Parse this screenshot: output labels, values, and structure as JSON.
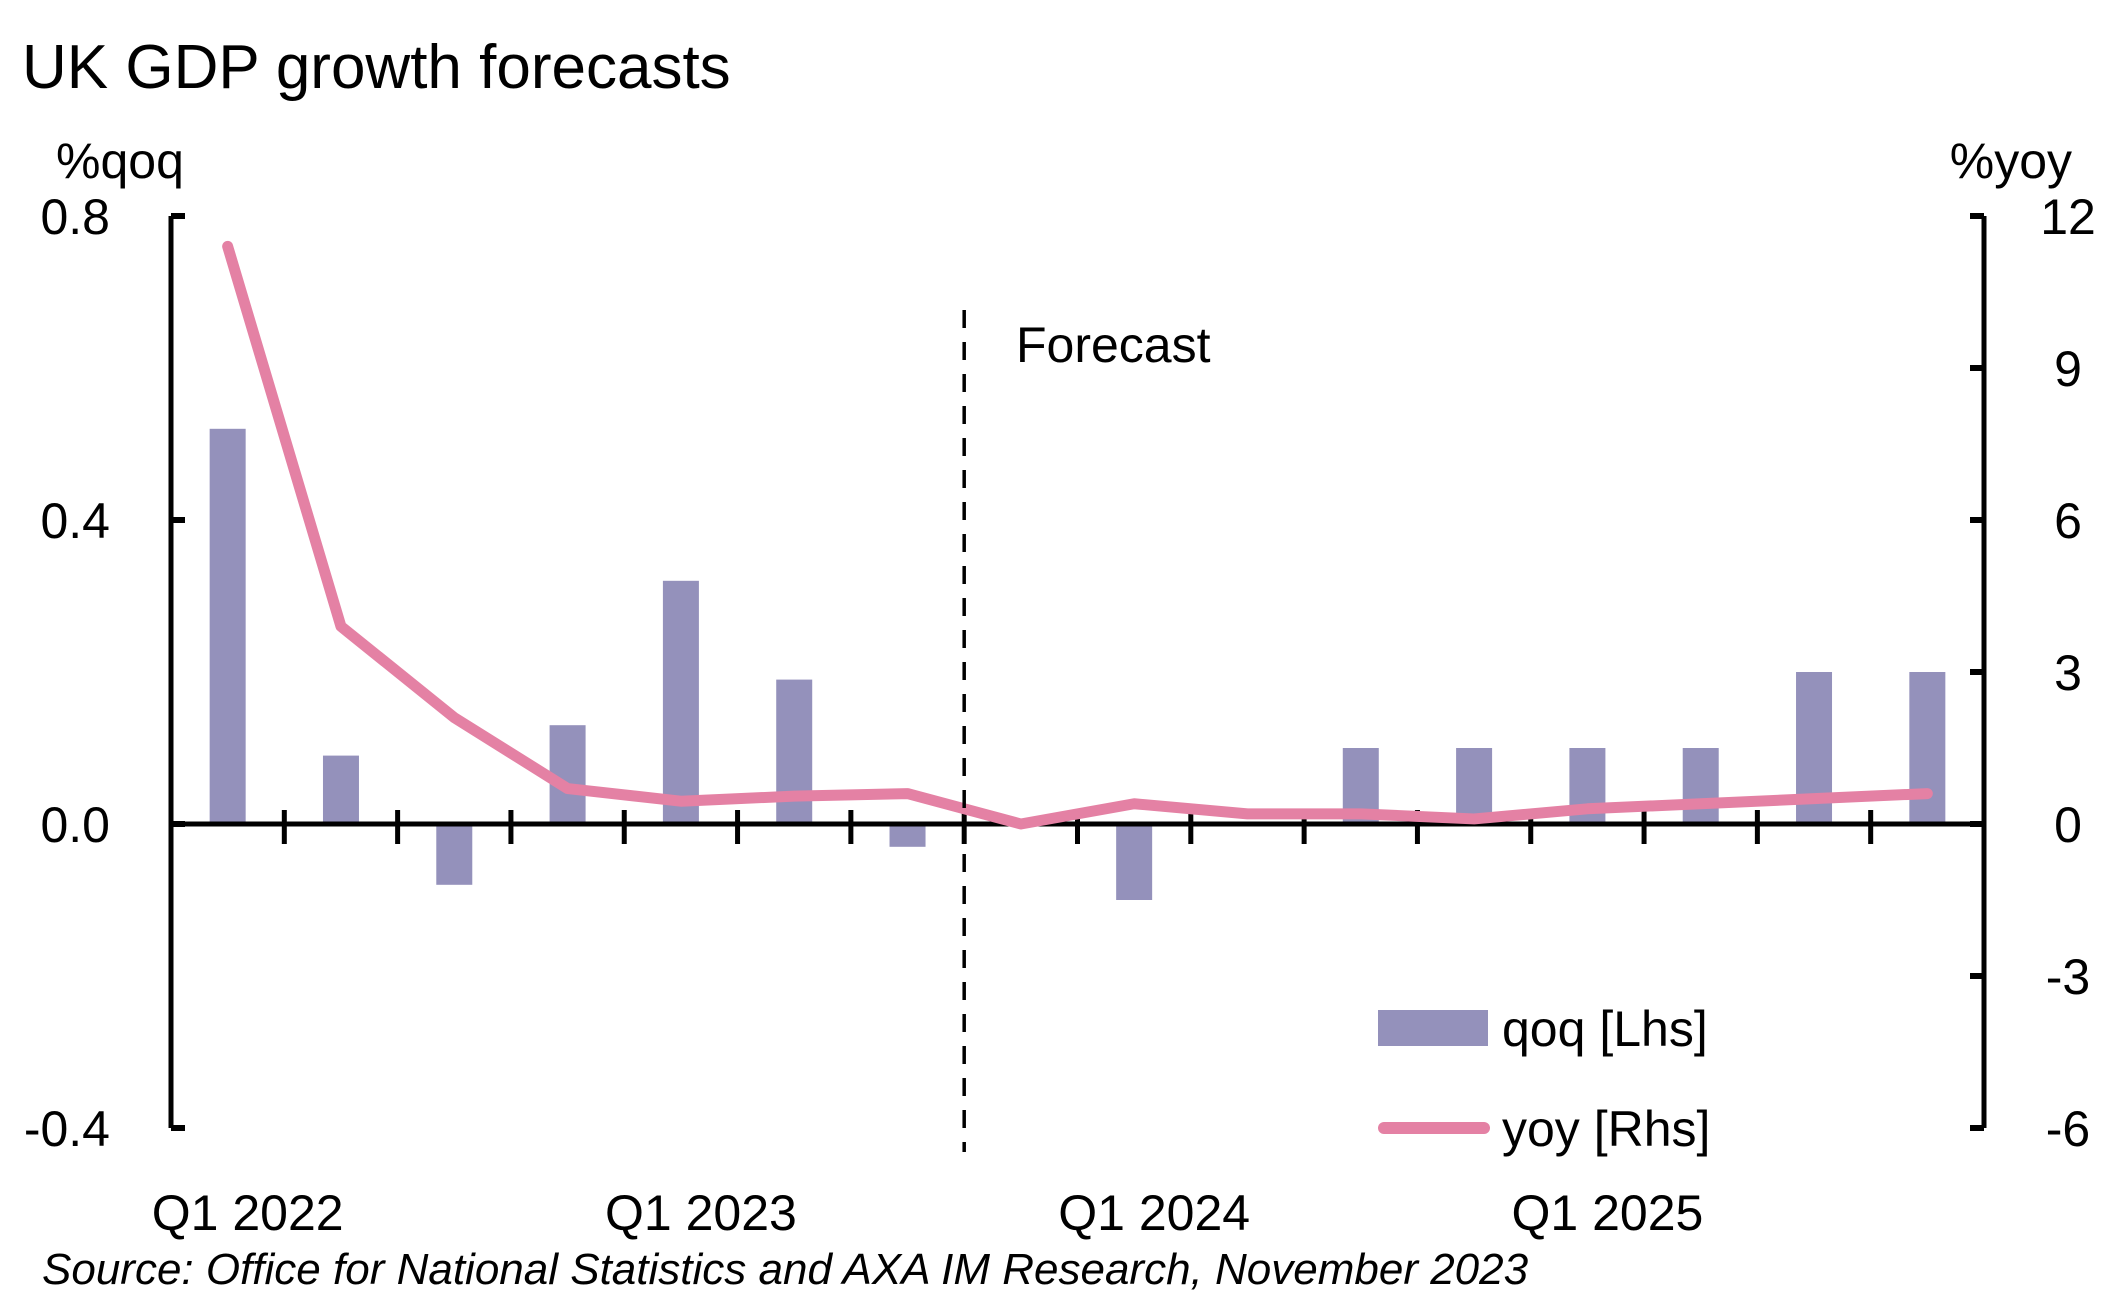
{
  "chart_data": {
    "type": "bar+line",
    "title": "UK GDP growth forecasts",
    "categories": [
      "Q1 2022",
      "Q2 2022",
      "Q3 2022",
      "Q4 2022",
      "Q1 2023",
      "Q2 2023",
      "Q3 2023",
      "Q4 2023",
      "Q1 2024",
      "Q2 2024",
      "Q3 2024",
      "Q4 2024",
      "Q1 2025",
      "Q2 2025",
      "Q3 2025",
      "Q4 2025"
    ],
    "x_tick_labels": [
      "Q1 2022",
      "Q1 2023",
      "Q1 2024",
      "Q1 2025"
    ],
    "left_axis": {
      "label": "%qoq",
      "ylim": [
        -0.4,
        0.8
      ],
      "ticks": [
        "0.8",
        "0.4",
        "0.0",
        "-0.4"
      ],
      "tick_values": [
        0.8,
        0.4,
        0.0,
        -0.4
      ]
    },
    "right_axis": {
      "label": "%yoy",
      "ylim": [
        -6,
        12
      ],
      "ticks": [
        "12",
        "9",
        "6",
        "3",
        "0",
        "-3",
        "-6"
      ],
      "tick_values": [
        12,
        9,
        6,
        3,
        0,
        -3,
        -6
      ]
    },
    "series": [
      {
        "name": "qoq [Lhs]",
        "type": "bar",
        "axis": "left",
        "color": "#9491bb",
        "values": [
          0.5,
          0.1,
          -0.1,
          0.1,
          0.3,
          0.2,
          0.0,
          0.0,
          -0.1,
          0.0,
          0.1,
          0.1,
          0.1,
          0.1,
          0.2,
          0.2
        ],
        "display_values": [
          0.52,
          0.09,
          -0.08,
          0.13,
          0.32,
          0.19,
          -0.03,
          0.0,
          -0.1,
          0.0,
          0.1,
          0.1,
          0.1,
          0.1,
          0.2,
          0.2
        ]
      },
      {
        "name": "yoy [Rhs]",
        "type": "line",
        "axis": "right",
        "color": "#e481a4",
        "values": [
          11.4,
          3.9,
          2.1,
          0.7,
          0.45,
          0.55,
          0.6,
          0.0,
          0.4,
          0.2,
          0.2,
          0.1,
          0.3,
          0.4,
          0.5,
          0.6
        ]
      }
    ],
    "forecast_start_after": "Q3 2023",
    "annotations": [
      "Forecast"
    ],
    "legend_position": "bottom-right",
    "grid": false,
    "source": "Source: Office for National Statistics and AXA IM Research, November 2023"
  }
}
